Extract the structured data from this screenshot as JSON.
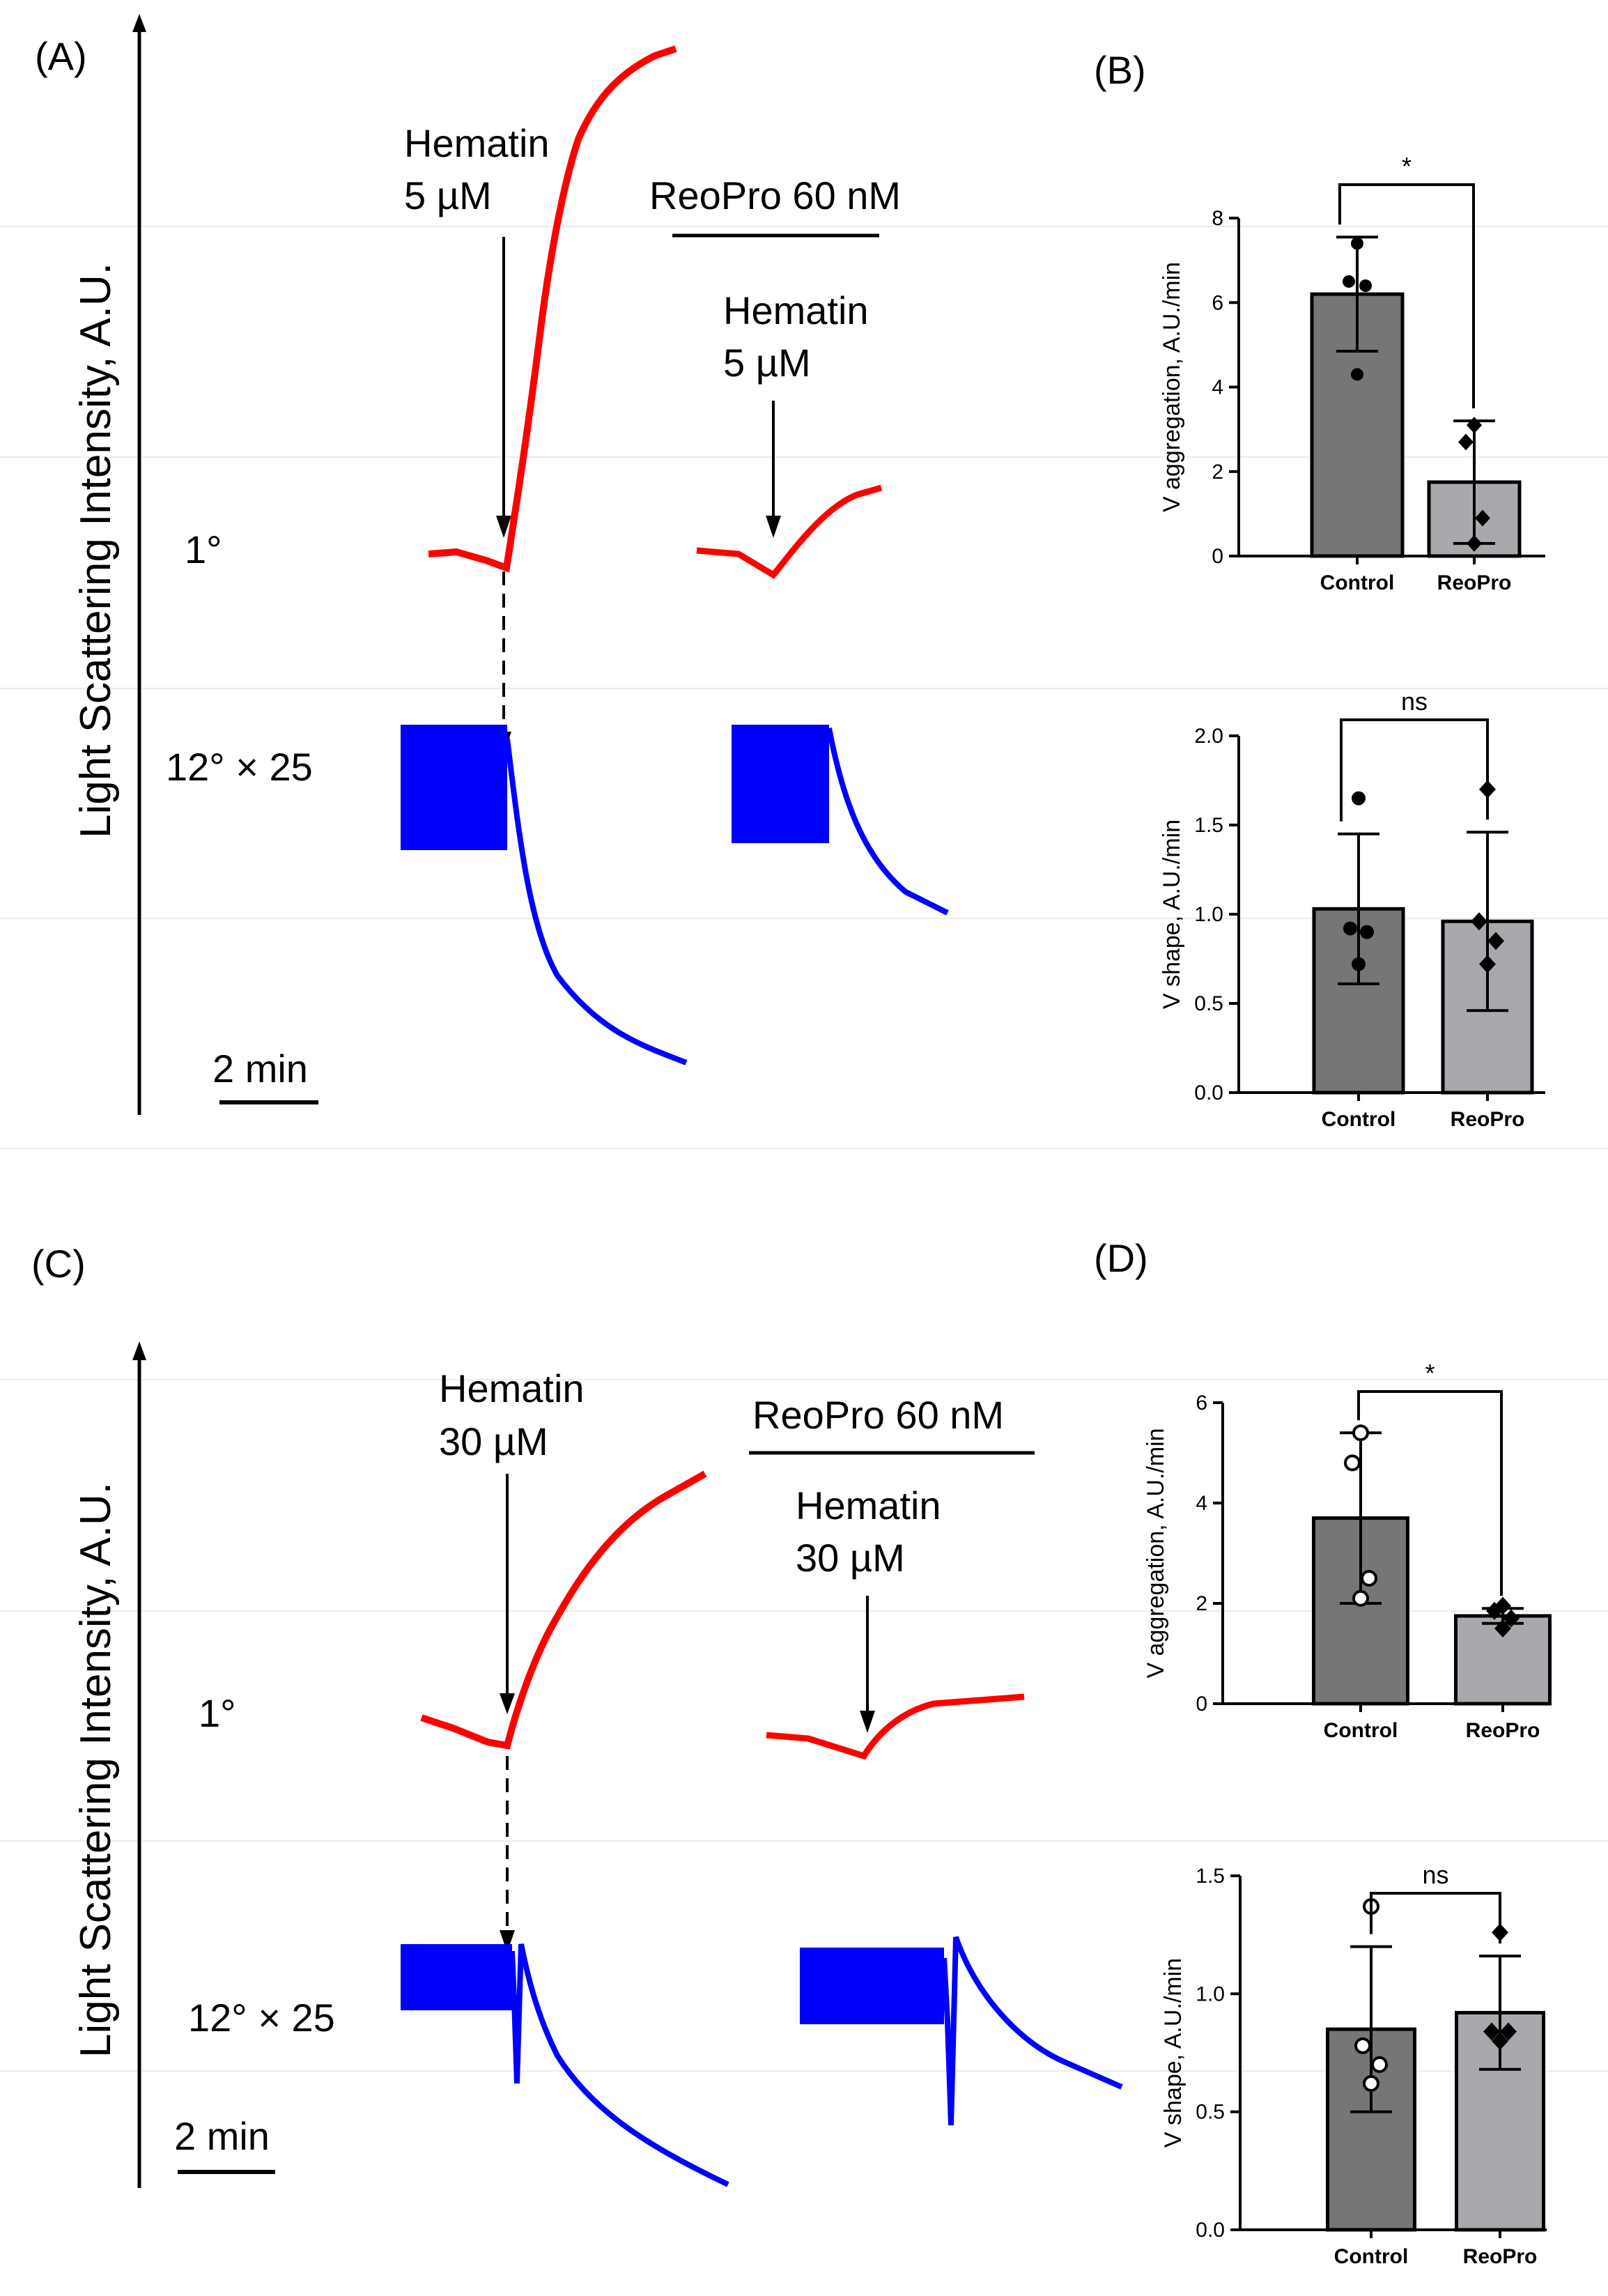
{
  "panels": {
    "a": {
      "label": "(A)",
      "y_label": "Light Scattering Intensity, A.U.",
      "row_1deg": "1°",
      "row_12deg": "12° × 25",
      "arrow_left_line1": "Hematin",
      "arrow_left_line2": "5 µM",
      "reopro": "ReoPro 60 nM",
      "arrow_right_line1": "Hematin",
      "arrow_right_line2": "5 µM",
      "scale": "2 min",
      "trace_colors": {
        "angle_1deg": "#ff0000",
        "angle_12deg": "#0000ff"
      }
    },
    "c": {
      "label": "(C)",
      "y_label": "Light Scattering Intensity, A.U.",
      "row_1deg": "1°",
      "row_12deg": "12° × 25",
      "arrow_left_line1": "Hematin",
      "arrow_left_line2": "30 µM",
      "reopro": "ReoPro 60 nM",
      "arrow_right_line1": "Hematin",
      "arrow_right_line2": "30 µM",
      "scale": "2 min",
      "trace_colors": {
        "angle_1deg": "#ff0000",
        "angle_12deg": "#0000ff"
      }
    },
    "b": {
      "label": "(B)"
    },
    "d": {
      "label": "(D)"
    }
  },
  "chart_data": [
    {
      "id": "B-aggregation",
      "type": "bar",
      "categories": [
        "Control",
        "ReoPro"
      ],
      "values": [
        6.2,
        1.75
      ],
      "sd": [
        1.35,
        1.45
      ],
      "points": [
        [
          7.4,
          6.5,
          6.4,
          4.3
        ],
        [
          3.1,
          2.7,
          0.9,
          0.3
        ]
      ],
      "marker": [
        "circle",
        "diamond"
      ],
      "ylabel": "V aggregation, A.U./min",
      "ylim": [
        0,
        8
      ],
      "yticks": [
        "0",
        "2",
        "4",
        "6",
        "8"
      ],
      "significance": "*",
      "bar_colors": [
        "#767676",
        "#a9a9ad"
      ]
    },
    {
      "id": "B-shape",
      "type": "bar",
      "categories": [
        "Control",
        "ReoPro"
      ],
      "values": [
        1.03,
        0.96
      ],
      "sd": [
        0.42,
        0.5
      ],
      "points": [
        [
          1.65,
          0.92,
          0.9,
          0.72
        ],
        [
          1.7,
          0.96,
          0.85,
          0.72
        ]
      ],
      "marker": [
        "circle",
        "diamond"
      ],
      "ylabel": "V shape, A.U./min",
      "ylim": [
        0,
        2
      ],
      "yticks": [
        "0.0",
        "0.5",
        "1.0",
        "1.5",
        "2.0"
      ],
      "significance": "ns",
      "bar_colors": [
        "#767676",
        "#a9a9ad"
      ]
    },
    {
      "id": "D-aggregation",
      "type": "bar",
      "categories": [
        "Control",
        "ReoPro"
      ],
      "values": [
        3.7,
        1.75
      ],
      "sd": [
        1.7,
        0.15
      ],
      "points": [
        [
          5.4,
          4.8,
          2.5,
          2.1
        ],
        [
          1.95,
          1.85,
          1.7,
          1.5
        ]
      ],
      "marker": [
        "open-circle",
        "diamond"
      ],
      "ylabel": "V aggregation, A.U./min",
      "ylim": [
        0,
        6
      ],
      "yticks": [
        "0",
        "2",
        "4",
        "6"
      ],
      "significance": "*",
      "bar_colors": [
        "#767676",
        "#a9a9ad"
      ]
    },
    {
      "id": "D-shape",
      "type": "bar",
      "categories": [
        "Control",
        "ReoPro"
      ],
      "values": [
        0.85,
        0.92
      ],
      "sd": [
        0.35,
        0.24
      ],
      "points": [
        [
          1.37,
          0.78,
          0.7,
          0.62
        ],
        [
          1.26,
          0.84,
          0.84,
          0.8
        ]
      ],
      "marker": [
        "open-circle",
        "diamond"
      ],
      "ylabel": "V shape, A.U./min",
      "ylim": [
        0,
        1.5
      ],
      "yticks": [
        "0.0",
        "0.5",
        "1.0",
        "1.5"
      ],
      "significance": "ns",
      "bar_colors": [
        "#767676",
        "#a9a9ad"
      ]
    }
  ]
}
